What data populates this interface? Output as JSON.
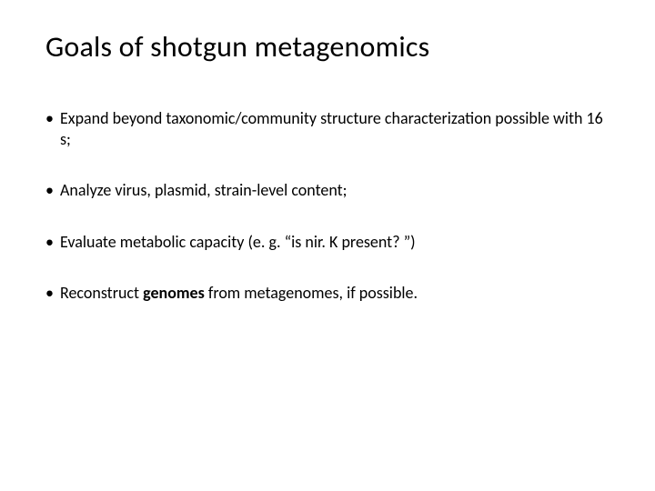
{
  "title": "Goals of shotgun metagenomics",
  "bullets": [
    {
      "pre": "Expand beyond taxonomic/community structure characterization possible with 16 s;",
      "bold": "",
      "post": ""
    },
    {
      "pre": "Analyze virus, plasmid, strain-level content;",
      "bold": "",
      "post": ""
    },
    {
      "pre": "Evaluate metabolic capacity (e. g. “is nir. K present? ”)",
      "bold": "",
      "post": ""
    },
    {
      "pre": "Reconstruct ",
      "bold": "genomes",
      "post": " from metagenomes, if possible."
    }
  ],
  "style": {
    "background_color": "#ffffff",
    "text_color": "#000000",
    "title_fontsize": 32,
    "body_fontsize": 18,
    "font_family": "Calibri"
  }
}
